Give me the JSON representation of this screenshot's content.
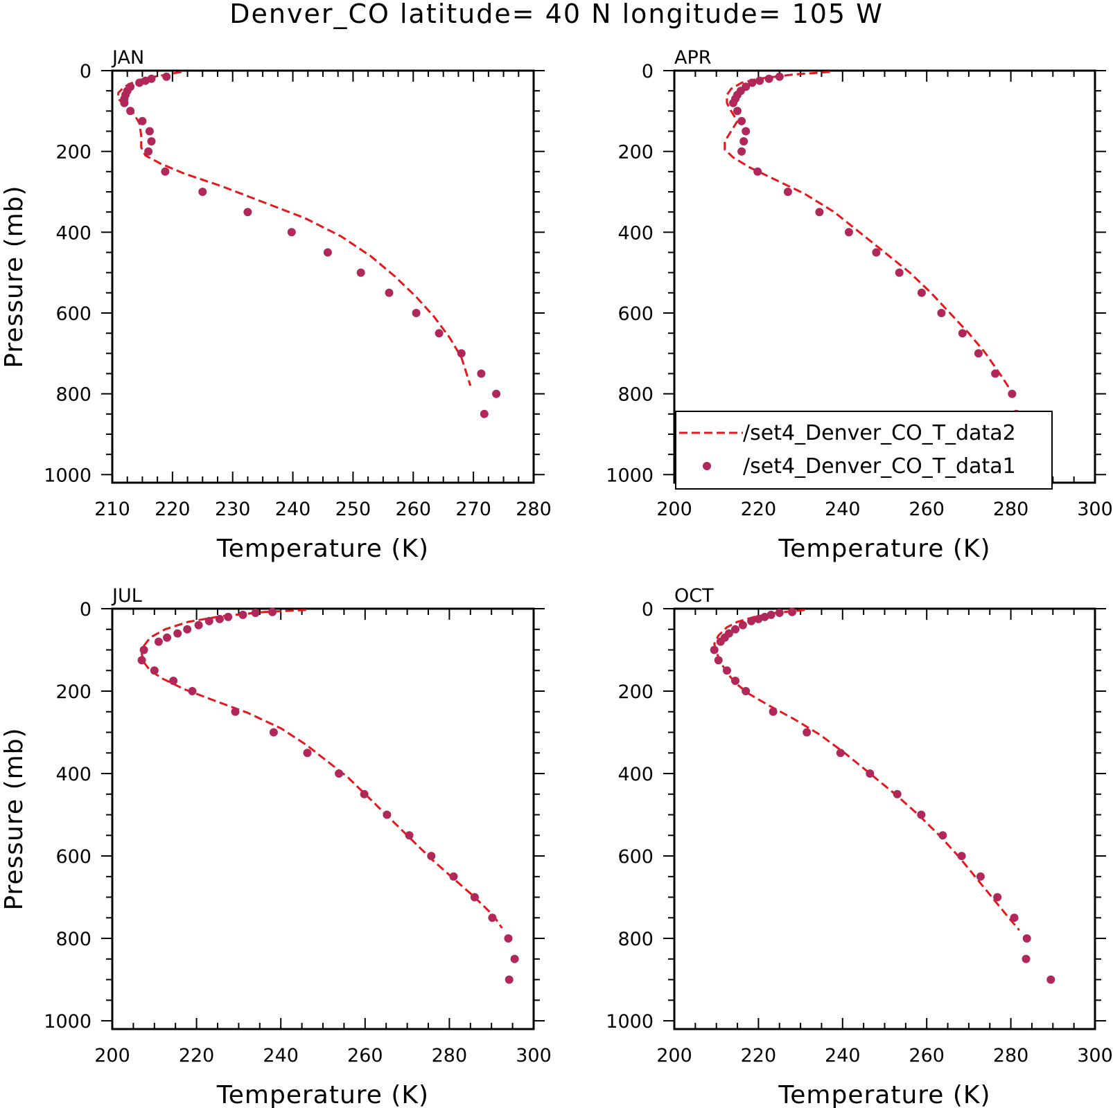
{
  "title": "Denver_CO  latitude= 40 N longitude= 105 W",
  "colors": {
    "line": "#e8161b",
    "points": "#b0285a"
  },
  "legend": {
    "placement": "bottom-inside-APR-panel",
    "line_label": "/set4_Denver_CO_T_data2",
    "points_label": "/set4_Denver_CO_T_data1"
  },
  "chart_data": [
    {
      "type": "line+scatter",
      "panel_title": "JAN",
      "xlabel": "Temperature (K)",
      "ylabel": "Pressure (mb)",
      "xlim": [
        210,
        280
      ],
      "ylim": [
        1020,
        0
      ],
      "y_inverted": true,
      "xticks": [
        210,
        220,
        230,
        240,
        250,
        260,
        270,
        280
      ],
      "yticks": [
        0,
        200,
        400,
        600,
        800,
        1000
      ],
      "series": [
        {
          "name": "/set4_Denver_CO_T_data2",
          "style": "dashed-line",
          "points": [
            [
              221.5,
              3
            ],
            [
              217,
              15
            ],
            [
              214,
              25
            ],
            [
              212,
              40
            ],
            [
              211,
              55
            ],
            [
              211,
              70
            ],
            [
              212,
              85
            ],
            [
              213.5,
              105
            ],
            [
              214.5,
              130
            ],
            [
              214.8,
              160
            ],
            [
              214.8,
              190
            ],
            [
              215.5,
              210
            ],
            [
              218,
              230
            ],
            [
              222,
              255
            ],
            [
              228,
              285
            ],
            [
              235,
              325
            ],
            [
              242,
              365
            ],
            [
              248,
              410
            ],
            [
              253,
              460
            ],
            [
              257,
              510
            ],
            [
              260.5,
              560
            ],
            [
              263.5,
              610
            ],
            [
              266,
              660
            ],
            [
              268,
              710
            ],
            [
              269.5,
              780
            ]
          ]
        },
        {
          "name": "/set4_Denver_CO_T_data1",
          "style": "points",
          "points": [
            [
              219,
              15
            ],
            [
              216.5,
              20
            ],
            [
              215.5,
              25
            ],
            [
              214.5,
              30
            ],
            [
              213,
              40
            ],
            [
              212.5,
              50
            ],
            [
              212.2,
              60
            ],
            [
              212,
              70
            ],
            [
              212,
              80
            ],
            [
              213,
              100
            ],
            [
              215,
              125
            ],
            [
              216.2,
              150
            ],
            [
              216.5,
              175
            ],
            [
              216,
              200
            ],
            [
              218.8,
              250
            ],
            [
              225,
              300
            ],
            [
              232.5,
              350
            ],
            [
              239.8,
              400
            ],
            [
              245.8,
              450
            ],
            [
              251.3,
              500
            ],
            [
              256,
              550
            ],
            [
              260.5,
              600
            ],
            [
              264.3,
              650
            ],
            [
              268,
              700
            ],
            [
              271.3,
              750
            ],
            [
              273.8,
              800
            ],
            [
              271.8,
              850
            ]
          ]
        }
      ]
    },
    {
      "type": "line+scatter",
      "panel_title": "APR",
      "xlabel": "Temperature (K)",
      "ylabel": "",
      "xlim": [
        200,
        300
      ],
      "ylim": [
        1020,
        0
      ],
      "y_inverted": true,
      "xticks": [
        200,
        220,
        240,
        260,
        280,
        300
      ],
      "yticks": [
        0,
        200,
        400,
        600,
        800,
        1000
      ],
      "series": [
        {
          "name": "/set4_Denver_CO_T_data2",
          "style": "dashed-line",
          "points": [
            [
              237,
              3
            ],
            [
              228,
              10
            ],
            [
              220,
              20
            ],
            [
              216,
              30
            ],
            [
              213.5,
              45
            ],
            [
              212.5,
              60
            ],
            [
              212.5,
              80
            ],
            [
              213.5,
              100
            ],
            [
              215,
              125
            ],
            [
              213.5,
              150
            ],
            [
              212,
              175
            ],
            [
              212,
              195
            ],
            [
              214,
              215
            ],
            [
              218,
              240
            ],
            [
              224,
              270
            ],
            [
              231,
              305
            ],
            [
              238,
              350
            ],
            [
              244,
              400
            ],
            [
              250,
              450
            ],
            [
              256,
              500
            ],
            [
              261,
              550
            ],
            [
              265.5,
              600
            ],
            [
              270,
              650
            ],
            [
              274,
              700
            ],
            [
              278,
              760
            ],
            [
              280.5,
              800
            ]
          ]
        },
        {
          "name": "/set4_Denver_CO_T_data1",
          "style": "points",
          "points": [
            [
              225,
              15
            ],
            [
              222.5,
              20
            ],
            [
              220.3,
              25
            ],
            [
              218.5,
              30
            ],
            [
              217,
              40
            ],
            [
              215.8,
              50
            ],
            [
              215,
              60
            ],
            [
              214.5,
              70
            ],
            [
              214,
              80
            ],
            [
              215,
              100
            ],
            [
              216,
              125
            ],
            [
              217,
              150
            ],
            [
              216.5,
              175
            ],
            [
              216,
              200
            ],
            [
              219.8,
              250
            ],
            [
              227,
              300
            ],
            [
              234.5,
              350
            ],
            [
              241.5,
              400
            ],
            [
              248,
              450
            ],
            [
              253.5,
              500
            ],
            [
              258.8,
              550
            ],
            [
              263.5,
              600
            ],
            [
              268.5,
              650
            ],
            [
              272.3,
              700
            ],
            [
              276.3,
              750
            ],
            [
              280.3,
              800
            ],
            [
              281.3,
              850
            ]
          ]
        }
      ]
    },
    {
      "type": "line+scatter",
      "panel_title": "JUL",
      "xlabel": "Temperature (K)",
      "ylabel": "Pressure (mb)",
      "xlim": [
        200,
        300
      ],
      "ylim": [
        1020,
        0
      ],
      "y_inverted": true,
      "xticks": [
        200,
        220,
        240,
        260,
        280,
        300
      ],
      "yticks": [
        0,
        200,
        400,
        600,
        800,
        1000
      ],
      "series": [
        {
          "name": "/set4_Denver_CO_T_data2",
          "style": "dashed-line",
          "points": [
            [
              246,
              3
            ],
            [
              236,
              8
            ],
            [
              226,
              18
            ],
            [
              218,
              32
            ],
            [
              212.5,
              50
            ],
            [
              209,
              70
            ],
            [
              207.5,
              90
            ],
            [
              207,
              110
            ],
            [
              207.5,
              130
            ],
            [
              209,
              150
            ],
            [
              212,
              170
            ],
            [
              217,
              195
            ],
            [
              224,
              222
            ],
            [
              232,
              252
            ],
            [
              240,
              290
            ],
            [
              246,
              330
            ],
            [
              251,
              370
            ],
            [
              256,
              410
            ],
            [
              261,
              460
            ],
            [
              266,
              510
            ],
            [
              271,
              560
            ],
            [
              276,
              610
            ],
            [
              281,
              655
            ],
            [
              286,
              700
            ],
            [
              290.5,
              745
            ],
            [
              292.5,
              775
            ]
          ]
        },
        {
          "name": "/set4_Denver_CO_T_data1",
          "style": "points",
          "points": [
            [
              238,
              8
            ],
            [
              234,
              10
            ],
            [
              231,
              15
            ],
            [
              227.5,
              20
            ],
            [
              225.5,
              25
            ],
            [
              223,
              30
            ],
            [
              220.5,
              40
            ],
            [
              217.8,
              50
            ],
            [
              215.5,
              60
            ],
            [
              213,
              70
            ],
            [
              211,
              80
            ],
            [
              207.5,
              100
            ],
            [
              207,
              125
            ],
            [
              210,
              150
            ],
            [
              214.5,
              175
            ],
            [
              219,
              200
            ],
            [
              229.2,
              250
            ],
            [
              238.3,
              300
            ],
            [
              246.3,
              350
            ],
            [
              253.8,
              400
            ],
            [
              259.8,
              450
            ],
            [
              265.2,
              500
            ],
            [
              270.5,
              550
            ],
            [
              275.7,
              600
            ],
            [
              281,
              650
            ],
            [
              286,
              700
            ],
            [
              290.2,
              750
            ],
            [
              294,
              800
            ],
            [
              295.5,
              850
            ],
            [
              294.2,
              900
            ]
          ]
        }
      ]
    },
    {
      "type": "line+scatter",
      "panel_title": "OCT",
      "xlabel": "Temperature (K)",
      "ylabel": "",
      "xlim": [
        200,
        300
      ],
      "ylim": [
        1020,
        0
      ],
      "y_inverted": true,
      "xticks": [
        200,
        220,
        240,
        260,
        280,
        300
      ],
      "yticks": [
        0,
        200,
        400,
        600,
        800,
        1000
      ],
      "series": [
        {
          "name": "/set4_Denver_CO_T_data2",
          "style": "dashed-line",
          "points": [
            [
              231,
              3
            ],
            [
              224,
              10
            ],
            [
              219,
              20
            ],
            [
              215,
              32
            ],
            [
              212.5,
              45
            ],
            [
              210.5,
              65
            ],
            [
              209.5,
              85
            ],
            [
              210,
              105
            ],
            [
              211,
              130
            ],
            [
              212.5,
              155
            ],
            [
              214.5,
              180
            ],
            [
              217.5,
              205
            ],
            [
              222.5,
              235
            ],
            [
              228.5,
              268
            ],
            [
              234.5,
              305
            ],
            [
              240.5,
              350
            ],
            [
              246.5,
              400
            ],
            [
              252.5,
              450
            ],
            [
              258,
              500
            ],
            [
              263,
              550
            ],
            [
              267.5,
              600
            ],
            [
              271.5,
              650
            ],
            [
              275.5,
              700
            ],
            [
              279.5,
              750
            ],
            [
              282,
              780
            ]
          ]
        },
        {
          "name": "/set4_Denver_CO_T_data1",
          "style": "points",
          "points": [
            [
              228,
              8
            ],
            [
              225,
              10
            ],
            [
              223,
              15
            ],
            [
              221.5,
              20
            ],
            [
              220,
              25
            ],
            [
              218.3,
              30
            ],
            [
              216.3,
              40
            ],
            [
              214.5,
              50
            ],
            [
              213,
              60
            ],
            [
              212,
              70
            ],
            [
              211,
              80
            ],
            [
              209.5,
              100
            ],
            [
              210.5,
              125
            ],
            [
              212.5,
              150
            ],
            [
              214.5,
              175
            ],
            [
              217,
              200
            ],
            [
              223.5,
              250
            ],
            [
              231.5,
              300
            ],
            [
              239.5,
              350
            ],
            [
              246.5,
              400
            ],
            [
              253,
              450
            ],
            [
              258.7,
              500
            ],
            [
              263.8,
              550
            ],
            [
              268.3,
              600
            ],
            [
              272.8,
              650
            ],
            [
              276.8,
              700
            ],
            [
              280.8,
              750
            ],
            [
              283.8,
              800
            ],
            [
              283.6,
              850
            ],
            [
              289.5,
              900
            ]
          ]
        }
      ]
    }
  ]
}
